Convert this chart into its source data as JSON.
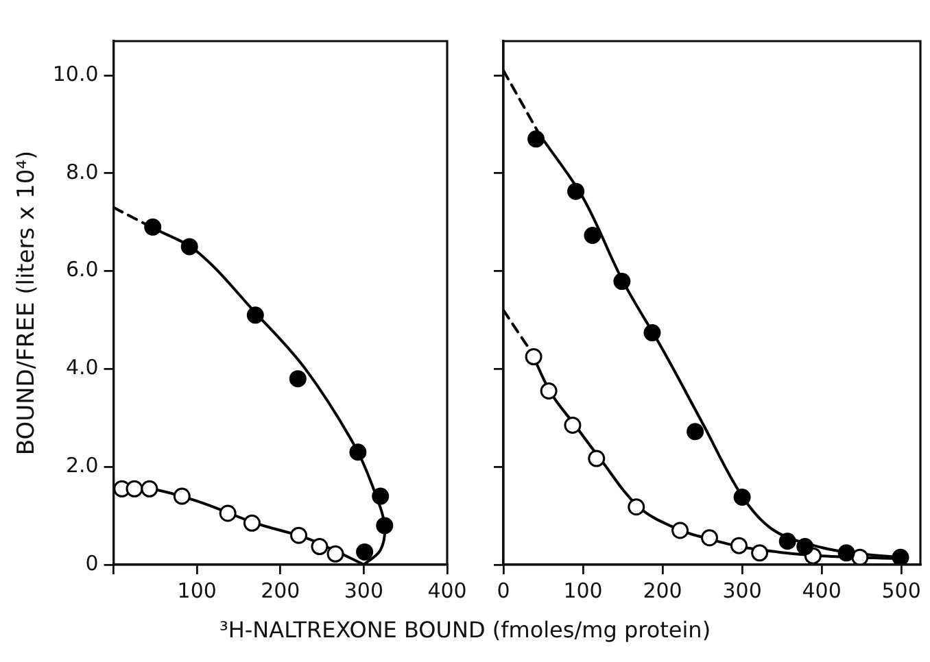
{
  "chart_data": [
    {
      "type": "scatter",
      "xlabel": "³H-NALTREXONE BOUND (fmoles/mg protein)",
      "ylabel": "BOUND/FREE (liters x 10⁴)",
      "xlim": [
        0,
        400
      ],
      "xticks": [
        {
          "value": 0,
          "label": null
        },
        100,
        200,
        300,
        400
      ],
      "ylim": [
        0,
        10.7
      ],
      "yticks": [
        0,
        {
          "value": 2,
          "label": "2.0"
        },
        {
          "value": 4,
          "label": "4.0"
        },
        {
          "value": 6,
          "label": "6.0"
        },
        {
          "value": 8,
          "label": "8.0"
        },
        {
          "value": 10,
          "label": "10.0"
        }
      ],
      "grid": false,
      "marker": "circle",
      "series": [
        {
          "type": "line",
          "color": "#000000",
          "marker": "none",
          "line_style": "dashed",
          "x": [
            0,
            45
          ],
          "values": [
            7.3,
            6.9
          ]
        },
        {
          "type": "line",
          "color": "#000000",
          "marker": "none",
          "x": [
            45,
            100,
            170,
            230,
            290,
            315,
            325,
            320,
            300
          ],
          "values": [
            6.9,
            6.4,
            5.15,
            4.0,
            2.4,
            1.4,
            0.8,
            0.3,
            0
          ]
        },
        {
          "type": "line",
          "color": "#000000",
          "marker": "none",
          "x": [
            0,
            45,
            100,
            170,
            230,
            270,
            300
          ],
          "values": [
            1.6,
            1.55,
            1.3,
            0.85,
            0.55,
            0.25,
            0
          ]
        },
        {
          "color": "#000000",
          "x": [
            47,
            91,
            170,
            221,
            293,
            320,
            325,
            301
          ],
          "values": [
            6.9,
            6.5,
            5.1,
            3.8,
            2.3,
            1.4,
            0.8,
            0.26
          ]
        },
        {
          "color": "#ffffff",
          "x": [
            10,
            25,
            43,
            82,
            137,
            166,
            222,
            247,
            266
          ],
          "values": [
            1.55,
            1.55,
            1.55,
            1.4,
            1.05,
            0.85,
            0.6,
            0.37,
            0.22
          ]
        }
      ]
    },
    {
      "type": "scatter",
      "tick_labels": "x",
      "xlim": [
        0,
        524
      ],
      "xticks": [
        0,
        100,
        200,
        300,
        400,
        500
      ],
      "ylim": [
        0,
        10.7
      ],
      "yticks": [
        0,
        2,
        4,
        6,
        8,
        10
      ],
      "grid": false,
      "marker": "circle",
      "series": [
        {
          "type": "line",
          "color": "#000000",
          "marker": "none",
          "line_style": "dashed",
          "x": [
            0,
            45
          ],
          "values": [
            10.1,
            8.8
          ]
        },
        {
          "type": "line",
          "color": "#000000",
          "marker": "none",
          "x": [
            45,
            100,
            150,
            200,
            250,
            300,
            340,
            400,
            450,
            500
          ],
          "values": [
            8.8,
            7.5,
            5.8,
            4.4,
            2.9,
            1.4,
            0.7,
            0.35,
            0.22,
            0.15
          ]
        },
        {
          "type": "line",
          "color": "#000000",
          "marker": "none",
          "line_style": "dashed",
          "x": [
            0,
            35
          ],
          "values": [
            5.2,
            4.35
          ]
        },
        {
          "type": "line",
          "color": "#000000",
          "marker": "none",
          "x": [
            35,
            60,
            90,
            120,
            170,
            220,
            260,
            300,
            350,
            400,
            500
          ],
          "values": [
            4.35,
            3.5,
            2.85,
            2.2,
            1.18,
            0.72,
            0.52,
            0.36,
            0.25,
            0.18,
            0.12
          ]
        },
        {
          "color": "#000000",
          "x": [
            41,
            91,
            112,
            149,
            187,
            241,
            300,
            357,
            379,
            431,
            499
          ],
          "values": [
            8.7,
            7.63,
            6.73,
            5.79,
            4.74,
            2.72,
            1.38,
            0.48,
            0.37,
            0.24,
            0.15
          ]
        },
        {
          "color": "#ffffff",
          "x": [
            38,
            57,
            87,
            117,
            167,
            222,
            259,
            296,
            322,
            389,
            448
          ],
          "values": [
            4.25,
            3.55,
            2.85,
            2.17,
            1.18,
            0.7,
            0.55,
            0.39,
            0.24,
            0.18,
            0.15
          ]
        }
      ]
    }
  ]
}
